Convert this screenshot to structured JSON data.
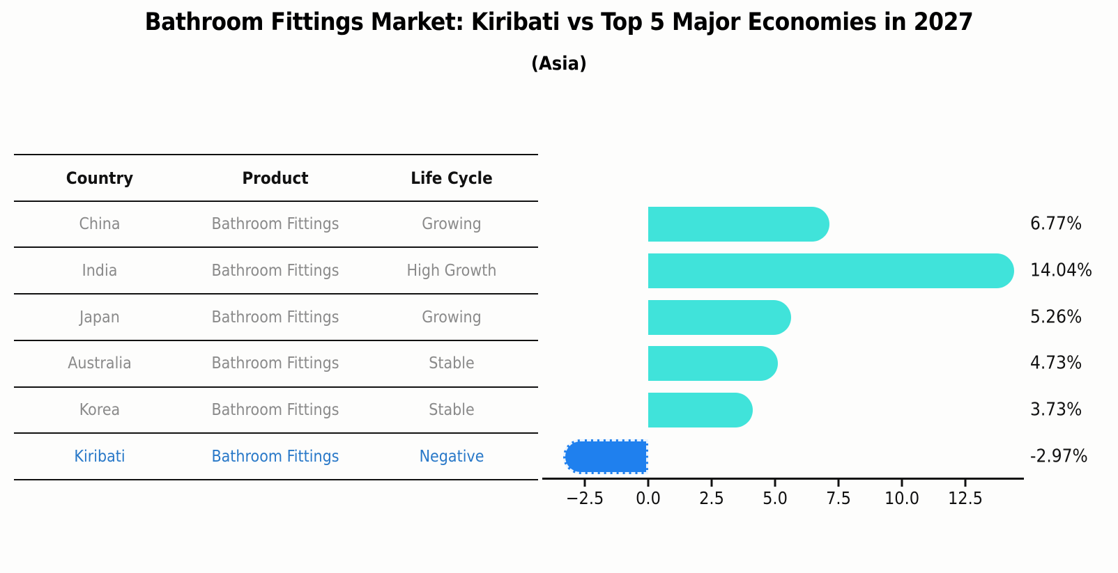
{
  "header": {
    "title": "Bathroom Fittings Market: Kiribati vs Top 5 Major Economies in 2027",
    "subtitle": "(Asia)"
  },
  "table": {
    "columns": [
      "Country",
      "Product",
      "Life Cycle"
    ],
    "rows": [
      {
        "country": "China",
        "product": "Bathroom Fittings",
        "life_cycle": "Growing",
        "highlight": false
      },
      {
        "country": "India",
        "product": "Bathroom Fittings",
        "life_cycle": "High Growth",
        "highlight": false
      },
      {
        "country": "Japan",
        "product": "Bathroom Fittings",
        "life_cycle": "Growing",
        "highlight": false
      },
      {
        "country": "Australia",
        "product": "Bathroom Fittings",
        "life_cycle": "Stable",
        "highlight": false
      },
      {
        "country": "Korea",
        "product": "Bathroom Fittings",
        "life_cycle": "Stable",
        "highlight": false
      },
      {
        "country": "Kiribati",
        "product": "Bathroom Fittings",
        "life_cycle": "Negative",
        "highlight": true
      }
    ]
  },
  "chart_data": {
    "type": "bar",
    "orientation": "horizontal",
    "title": "Bathroom Fittings Market: Kiribati vs Top 5 Major Economies in 2027 (Asia)",
    "categories": [
      "China",
      "India",
      "Japan",
      "Australia",
      "Korea",
      "Kiribati"
    ],
    "values": [
      6.77,
      14.04,
      5.26,
      4.73,
      3.73,
      -2.97
    ],
    "value_labels": [
      "6.77%",
      "14.04%",
      "5.26%",
      "4.73%",
      "3.73%",
      "-2.97%"
    ],
    "x_ticks": [
      -2.5,
      0.0,
      2.5,
      5.0,
      7.5,
      10.0,
      12.5
    ],
    "x_tick_labels": [
      "−2.5",
      "0.0",
      "2.5",
      "5.0",
      "7.5",
      "10.0",
      "12.5"
    ],
    "xlim": [
      -4.18,
      14.8
    ],
    "xlabel": "",
    "ylabel": "",
    "grid": false,
    "legend": false,
    "bar_color": "#40e3da",
    "negative_bar_color": "#1f80ee",
    "highlight_text_color": "#2878c8",
    "row_text_color": "#8a8a8a",
    "axis_color": "#111111"
  }
}
